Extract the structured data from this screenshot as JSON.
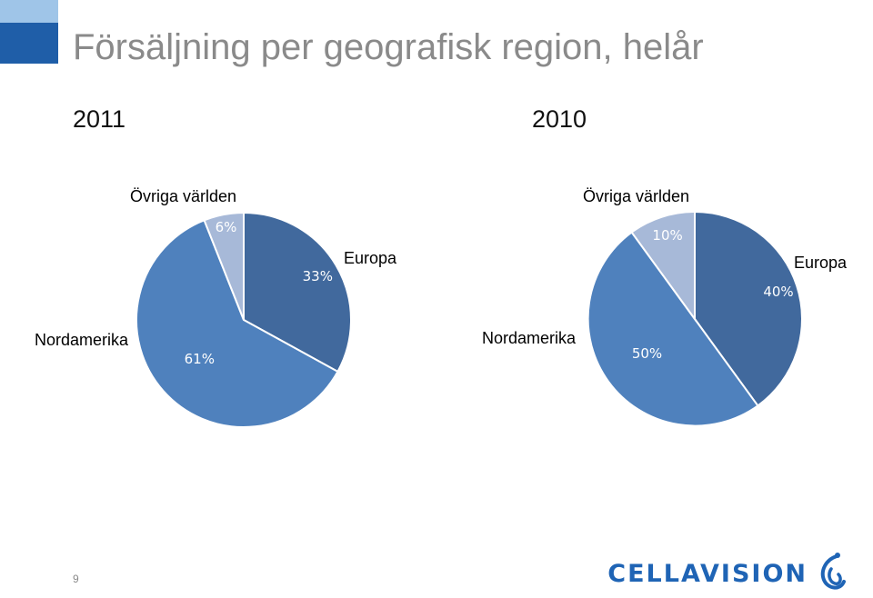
{
  "title": "Försäljning per geografisk region, helår",
  "page_number": "9",
  "logo_text": "CELLAVISION",
  "colors": {
    "europa": "#41699d",
    "nordamerika": "#4f81bd",
    "ovriga": "#a7b9d8",
    "title_gray": "#8a8a8a",
    "accent_light": "#9fc5e8",
    "accent_dark": "#1f5ea8",
    "logo_blue": "#1f64b5"
  },
  "chart_data": [
    {
      "type": "pie",
      "title": "2011",
      "categories": [
        "Europa",
        "Nordamerika",
        "Övriga världen"
      ],
      "values": [
        33,
        61,
        6
      ],
      "value_labels": [
        "33%",
        "61%",
        "6%"
      ]
    },
    {
      "type": "pie",
      "title": "2010",
      "categories": [
        "Europa",
        "Nordamerika",
        "Övriga världen"
      ],
      "values": [
        40,
        50,
        10
      ],
      "value_labels": [
        "40%",
        "50%",
        "10%"
      ]
    }
  ]
}
